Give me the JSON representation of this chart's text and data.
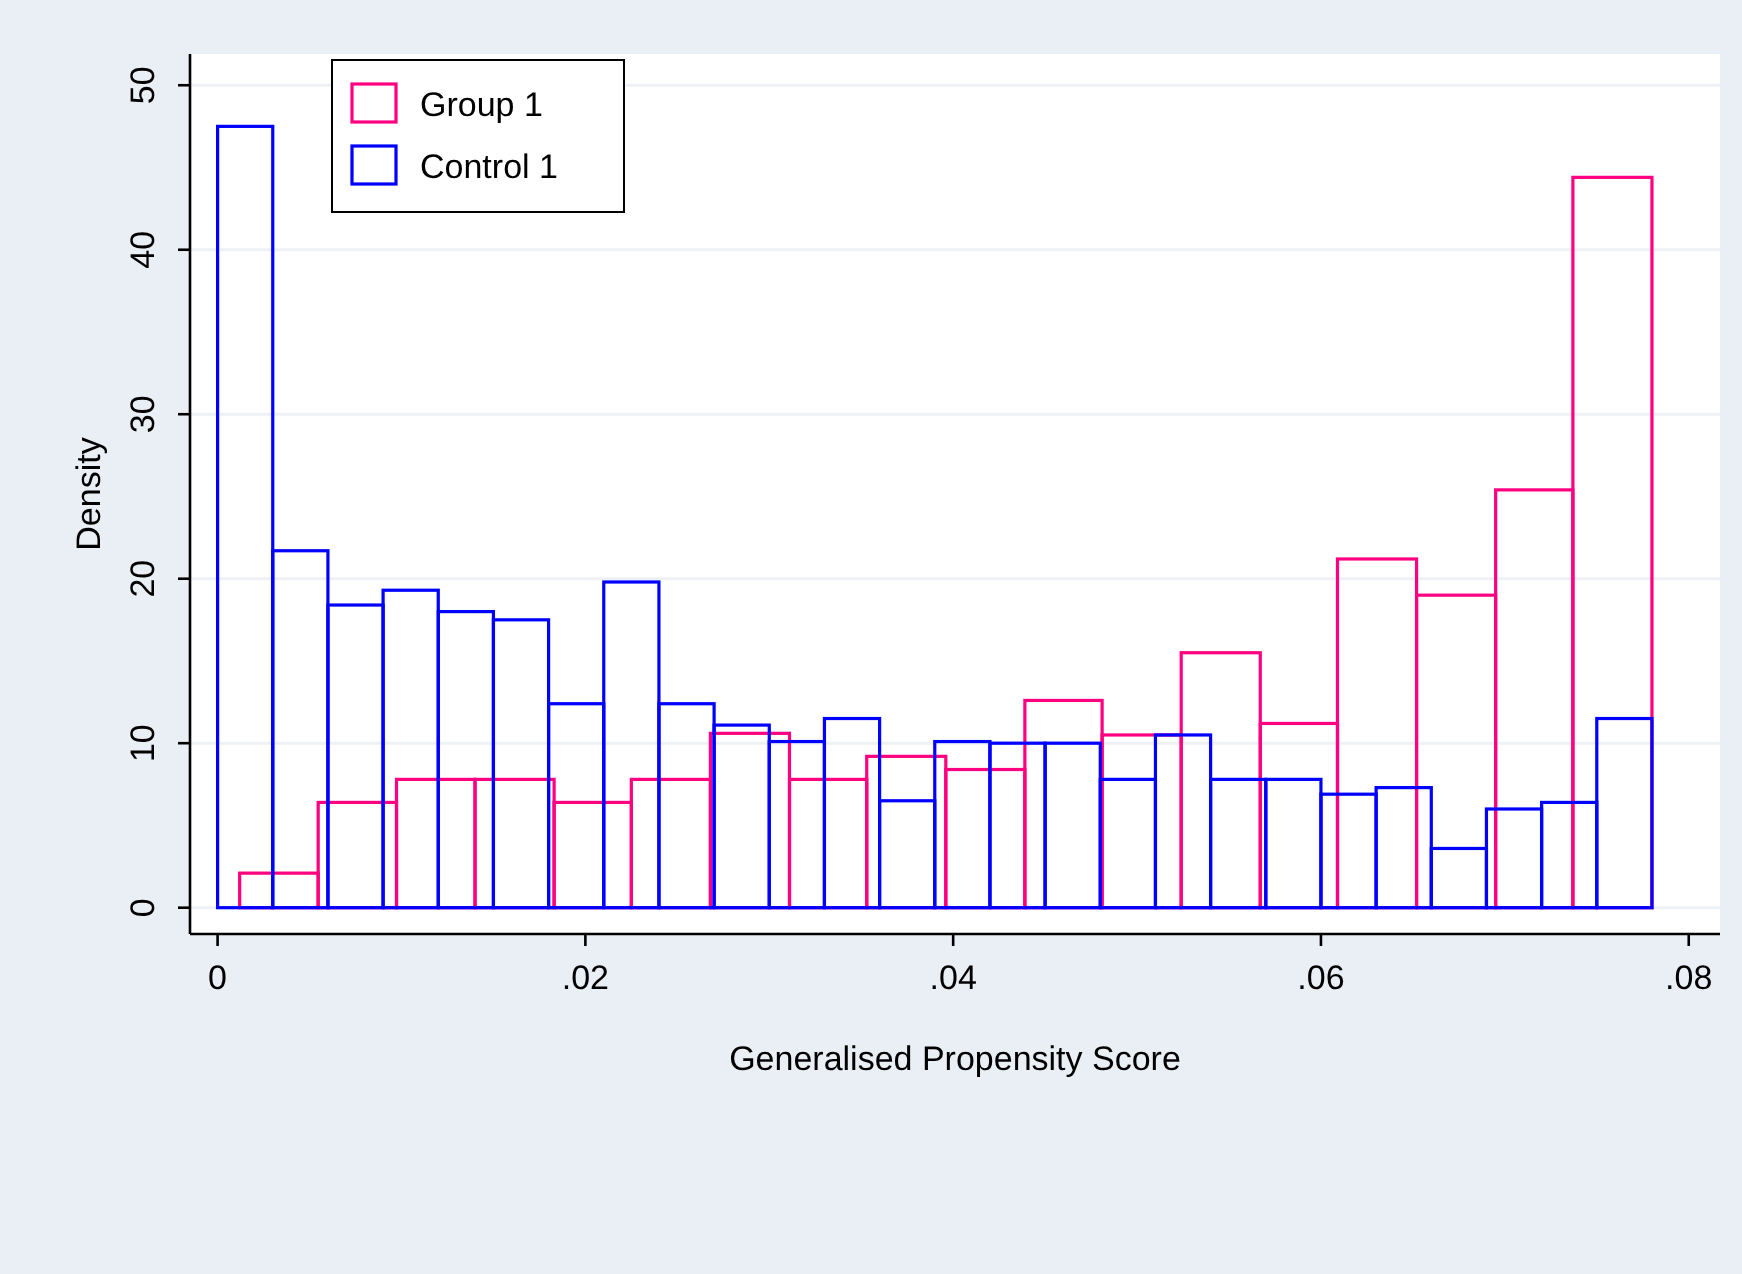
{
  "chart_data": {
    "type": "histogram",
    "xlabel": "Generalised Propensity Score",
    "ylabel": "Density",
    "xlim": [
      -0.0015,
      0.0817
    ],
    "ylim": [
      -1.6,
      51.9
    ],
    "xticks": [
      {
        "value": 0,
        "label": "0"
      },
      {
        "value": 0.02,
        "label": ".02"
      },
      {
        "value": 0.04,
        "label": ".04"
      },
      {
        "value": 0.06,
        "label": ".06"
      },
      {
        "value": 0.08,
        "label": ".08"
      }
    ],
    "yticks": [
      0,
      10,
      20,
      30,
      40,
      50
    ],
    "grid": "y",
    "legend": "top left",
    "bins": [
      0,
      0.003,
      0.006,
      0.009,
      0.012,
      0.015,
      0.018,
      0.021,
      0.024,
      0.027,
      0.03,
      0.033,
      0.036,
      0.039,
      0.042,
      0.045,
      0.048,
      0.051,
      0.054,
      0.057,
      0.06,
      0.063,
      0.066,
      0.069,
      0.072,
      0.075,
      0.078
    ],
    "series": [
      {
        "name": "Group 1",
        "color": "#ff0080",
        "bins": [
          0.0012,
          0.00547,
          0.00973,
          0.014,
          0.0183,
          0.0225,
          0.0268,
          0.0311,
          0.0353,
          0.0396,
          0.0439,
          0.0481,
          0.0524,
          0.0567,
          0.0609,
          0.0652,
          0.0695,
          0.0737,
          0.078
        ],
        "values": [
          2.1,
          6.4,
          7.8,
          7.8,
          6.4,
          7.8,
          10.6,
          7.8,
          9.2,
          8.4,
          12.6,
          10.5,
          15.5,
          11.2,
          21.2,
          19,
          25.4,
          44.4
        ]
      },
      {
        "name": "Control 1",
        "color": "#0000ff",
        "values": [
          47.5,
          21.7,
          18.4,
          19.3,
          18,
          17.5,
          12.4,
          19.8,
          12.4,
          11.1,
          10.1,
          11.5,
          6.5,
          10.1,
          10,
          10,
          7.8,
          10.5,
          7.8,
          7.8,
          6.9,
          7.3,
          3.6,
          6,
          6.4,
          11.5
        ]
      }
    ]
  }
}
